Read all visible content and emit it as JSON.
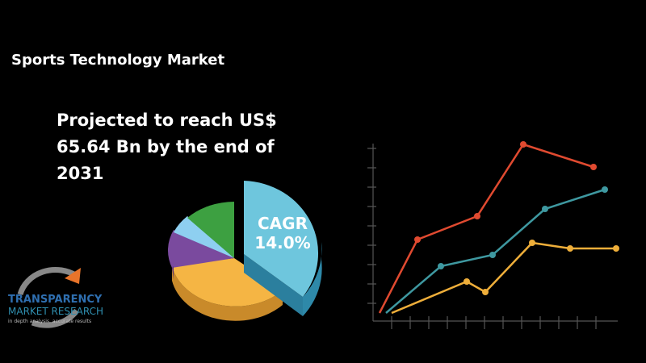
{
  "header": {
    "title": "Sports Technology Market"
  },
  "headline": {
    "lines": [
      "Projected to reach US$",
      "65.64 Bn by the end of",
      "2031"
    ]
  },
  "badge": {
    "label": "CAGR",
    "value": "14.0%"
  },
  "logo": {
    "name": "TRANSPARENCY",
    "subname": "MARKET RESEARCH",
    "tagline": "in depth analysis, accurate results"
  }
}
